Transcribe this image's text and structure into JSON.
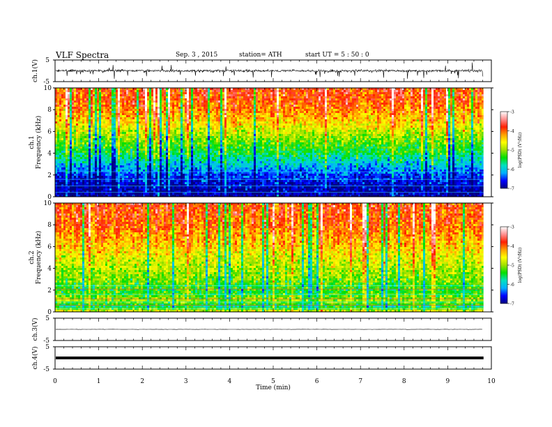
{
  "header": {
    "title": "VLF  Spectra",
    "date": "Sep. 3  , 2015",
    "station": "station= ATH",
    "start": "start  UT  =   5  : 50 : 0"
  },
  "chart_data": [
    {
      "type": "line",
      "name": "ch1-waveform",
      "ylabel": "ch.1(V)",
      "yticks": [
        "5",
        "-5"
      ],
      "ylim": [
        -5,
        5
      ],
      "xlim": [
        0,
        10
      ],
      "data_end_min": 9.82,
      "signal": "broadband noise, approx. -1.5 to 1.5 V with spikes to about -3.5 V"
    },
    {
      "type": "heatmap",
      "name": "ch1-spectrogram",
      "ylabel": "ch.1\nFrequency  (kHz)",
      "yticks": [
        "0",
        "2",
        "4",
        "6",
        "8",
        "10"
      ],
      "ylim": [
        0,
        10
      ],
      "xlim": [
        0,
        10
      ],
      "data_end_min": 9.82,
      "colorbar": {
        "label": "log(PSD) (V²/Hz)",
        "ticks": [
          "-3",
          "-4",
          "-5",
          "-6",
          "-7"
        ],
        "range": [
          -7,
          -3
        ]
      },
      "level_profile": [
        {
          "f_khz": 0.0,
          "log_psd": -6.9
        },
        {
          "f_khz": 1.0,
          "log_psd": -6.8
        },
        {
          "f_khz": 2.0,
          "log_psd": -6.5
        },
        {
          "f_khz": 3.0,
          "log_psd": -6.0
        },
        {
          "f_khz": 4.0,
          "log_psd": -5.5
        },
        {
          "f_khz": 5.0,
          "log_psd": -5.2
        },
        {
          "f_khz": 6.0,
          "log_psd": -4.8
        },
        {
          "f_khz": 7.0,
          "log_psd": -4.4
        },
        {
          "f_khz": 8.0,
          "log_psd": -4.1
        },
        {
          "f_khz": 9.0,
          "log_psd": -3.9
        },
        {
          "f_khz": 10.0,
          "log_psd": -3.8
        }
      ]
    },
    {
      "type": "heatmap",
      "name": "ch2-spectrogram",
      "ylabel": "ch.2\nFrequency  (kHz)",
      "yticks": [
        "0",
        "2",
        "4",
        "6",
        "8",
        "10"
      ],
      "ylim": [
        0,
        10
      ],
      "xlim": [
        0,
        10
      ],
      "data_end_min": 9.82,
      "colorbar": {
        "label": "log(PSD) (V²/Hz)",
        "ticks": [
          "-3",
          "-4",
          "-5",
          "-6",
          "-7"
        ],
        "range": [
          -7,
          -3
        ]
      },
      "level_profile": [
        {
          "f_khz": 0.0,
          "log_psd": -4.6
        },
        {
          "f_khz": 0.5,
          "log_psd": -5.6
        },
        {
          "f_khz": 1.0,
          "log_psd": -5.0
        },
        {
          "f_khz": 2.0,
          "log_psd": -5.4
        },
        {
          "f_khz": 3.0,
          "log_psd": -5.1
        },
        {
          "f_khz": 4.0,
          "log_psd": -4.9
        },
        {
          "f_khz": 5.0,
          "log_psd": -4.7
        },
        {
          "f_khz": 6.0,
          "log_psd": -4.4
        },
        {
          "f_khz": 7.0,
          "log_psd": -4.2
        },
        {
          "f_khz": 8.0,
          "log_psd": -4.0
        },
        {
          "f_khz": 9.0,
          "log_psd": -3.9
        },
        {
          "f_khz": 10.0,
          "log_psd": -3.9
        }
      ]
    },
    {
      "type": "line",
      "name": "ch3-waveform",
      "ylabel": "ch.3(V)",
      "yticks": [
        "5",
        "-5"
      ],
      "ylim": [
        -5,
        5
      ],
      "xlim": [
        0,
        10
      ],
      "data_end_min": 9.82,
      "signal": "near-flat trace at about 0 V"
    },
    {
      "type": "line",
      "name": "ch4-waveform",
      "ylabel": "ch.4(V)",
      "yticks": [
        "5",
        "-5"
      ],
      "ylim": [
        -5,
        5
      ],
      "xlim": [
        0,
        10
      ],
      "data_end_min": 9.82,
      "signal": "thick flat trace at about 0 V"
    }
  ],
  "xaxis": {
    "label": "Time  (min)",
    "ticks": [
      "0",
      "1",
      "2",
      "3",
      "4",
      "5",
      "6",
      "7",
      "8",
      "9",
      "10"
    ]
  },
  "colors": {
    "scale": [
      "#000080",
      "#0000ff",
      "#00b0ff",
      "#00e0c0",
      "#00e000",
      "#a0e000",
      "#ffff00",
      "#ffa000",
      "#ff2000",
      "#ff9090",
      "#ffffff"
    ]
  }
}
